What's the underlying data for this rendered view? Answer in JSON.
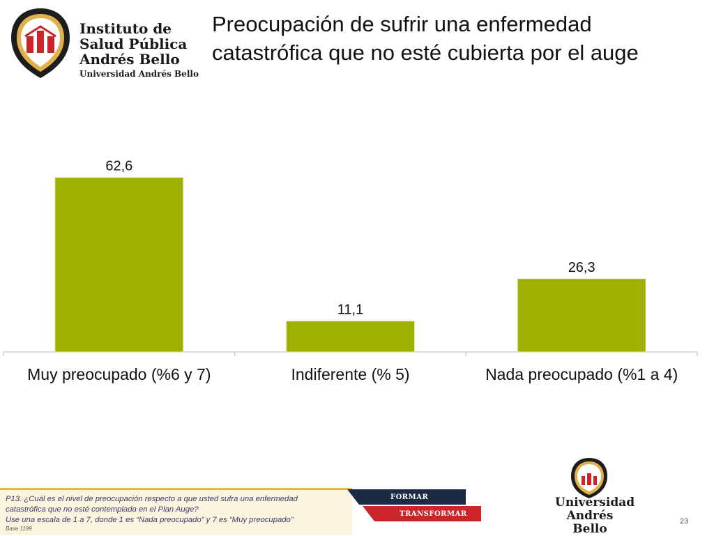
{
  "header": {
    "logo_lines": [
      "Instituto de",
      "Salud Pública",
      "Andrés Bello",
      "Universidad Andrés Bello"
    ],
    "title_line1": "Preocupación de sufrir una enfermedad",
    "title_line2": "catastrófica que no esté cubierta por el auge"
  },
  "chart_data": {
    "type": "bar",
    "categories": [
      "Muy preocupado (%6 y 7)",
      "Indiferente (% 5)",
      "Nada preocupado (%1 a 4)"
    ],
    "values": [
      62.6,
      11.1,
      26.3
    ],
    "value_labels": [
      "62,6",
      "11,1",
      "26,3"
    ],
    "bar_color": "#a0b000",
    "ylim": [
      0,
      70
    ],
    "grid": false,
    "title": "",
    "xlabel": "",
    "ylabel": ""
  },
  "footer": {
    "question_line1": "P13. ¿Cuál es el nivel de preocupación respecto a que usted sufra una enfermedad",
    "question_line2": "catastrófica que no esté contemplada en el Plan Auge?",
    "question_line3": "Use una escala de 1 a 7, donde 1 es “Nada preocupado” y 7 es “Muy preocupado”",
    "base": "Base 1199",
    "band_top": "FORMAR",
    "band_bottom": "TRANSFORMAR",
    "bottom_logo_line1": "Universidad",
    "bottom_logo_line2": "Andrés Bello",
    "page_number": "23"
  },
  "colors": {
    "accent_gold": "#e8b64a",
    "navy": "#1d2a44",
    "red": "#c9252b"
  }
}
